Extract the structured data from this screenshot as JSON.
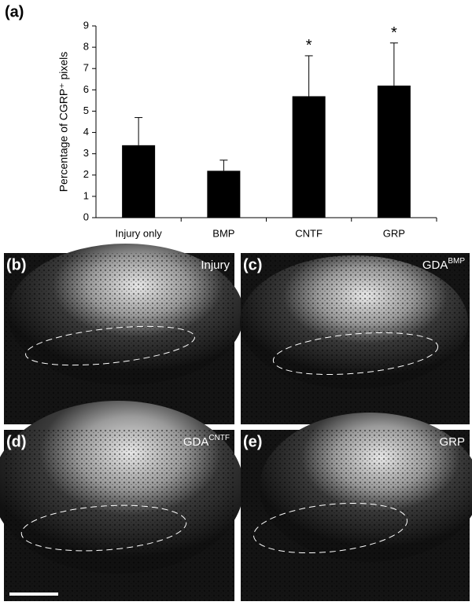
{
  "chart_data": {
    "type": "bar",
    "panel_label": "(a)",
    "y_label": "Percentage of CGRP⁺ pixels",
    "categories": [
      "Injury only",
      "BMP",
      "CNTF",
      "GRP"
    ],
    "values": [
      3.4,
      2.2,
      5.7,
      6.2
    ],
    "errors": [
      1.3,
      0.5,
      1.9,
      2.0
    ],
    "color": "#000000",
    "annotations": [
      {
        "category": "CNTF",
        "text": "*"
      },
      {
        "category": "GRP",
        "text": "*"
      }
    ],
    "ylim": [
      0,
      9
    ],
    "yticks": [
      0,
      1,
      2,
      3,
      4,
      5,
      6,
      7,
      8,
      9
    ],
    "grid": false
  },
  "panels": [
    {
      "label": "(b)",
      "title": "Injury"
    },
    {
      "label": "(c)",
      "title": "GDA",
      "superscript": "BMP"
    },
    {
      "label": "(d)",
      "title": "GDA",
      "superscript": "CNTF"
    },
    {
      "label": "(e)",
      "title": "GRP"
    }
  ]
}
